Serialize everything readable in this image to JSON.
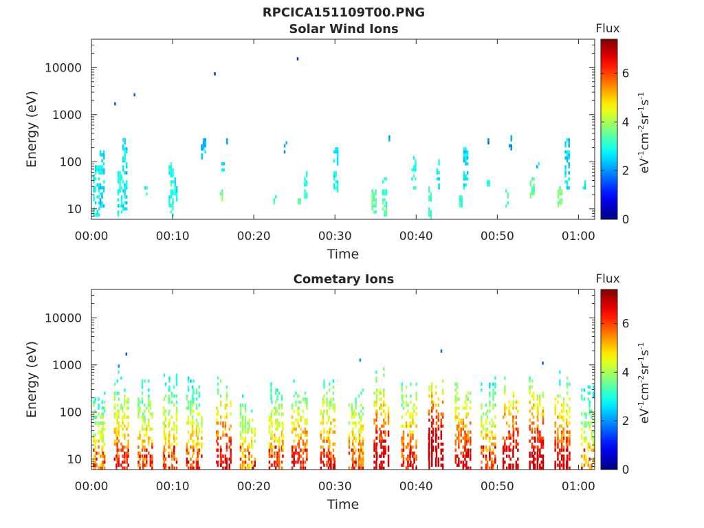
{
  "figure_title": "RPCICA151109T00.PNG",
  "chart_data": [
    {
      "type": "heatmap",
      "title": "Solar Wind Ions",
      "xlabel": "Time",
      "ylabel": "Energy (eV)",
      "yscale": "log",
      "xlim_min": [
        0,
        62
      ],
      "ylim_eV": [
        6,
        40000
      ],
      "x_ticks_min": [
        0,
        10,
        20,
        30,
        40,
        50,
        60
      ],
      "x_tick_labels": [
        "00:00",
        "00:10",
        "00:20",
        "00:30",
        "00:40",
        "00:50",
        "01:00"
      ],
      "y_ticks": [
        10,
        100,
        1000,
        10000
      ],
      "y_tick_labels": [
        "10",
        "100",
        "1000",
        "10000"
      ],
      "colorbar": {
        "title": "Flux",
        "unit_base": "eV",
        "unit_superscripts": [
          "-1",
          "-2",
          "-1",
          "-1"
        ],
        "unit_parts": [
          "cm",
          "sr",
          "s"
        ],
        "range": [
          0,
          7.4
        ],
        "ticks": [
          0,
          2,
          4,
          6
        ],
        "tick_labels": [
          "0",
          "2",
          "4",
          "6"
        ],
        "colormap": "jet"
      },
      "grid": false,
      "clusters": [
        [
          0.2,
          8,
          75,
          2.8,
          0.8
        ],
        [
          1,
          12,
          170,
          2.5,
          0.6
        ],
        [
          3.2,
          8,
          60,
          2.9,
          0.7
        ],
        [
          3.8,
          10,
          300,
          2.6,
          0.7
        ],
        [
          6.5,
          20,
          30,
          3.0,
          0.4
        ],
        [
          9.5,
          7,
          90,
          3.0,
          0.6
        ],
        [
          10.2,
          15,
          60,
          2.8,
          0.5
        ],
        [
          13.5,
          130,
          300,
          2.4,
          0.6
        ],
        [
          15.8,
          15,
          25,
          3.8,
          0.5
        ],
        [
          16.0,
          70,
          90,
          2.6,
          0.4
        ],
        [
          16.6,
          250,
          300,
          2.0,
          0.3
        ],
        [
          22.4,
          12,
          18,
          3.2,
          0.4
        ],
        [
          23.7,
          170,
          300,
          2.1,
          0.4
        ],
        [
          25.4,
          12,
          18,
          3.2,
          0.4
        ],
        [
          26.2,
          18,
          60,
          2.9,
          0.5
        ],
        [
          29.8,
          25,
          180,
          2.7,
          0.6
        ],
        [
          34.5,
          8,
          25,
          3.5,
          0.6
        ],
        [
          35.8,
          8,
          45,
          3.3,
          0.6
        ],
        [
          36.6,
          300,
          350,
          2.0,
          0.3
        ],
        [
          39.4,
          30,
          120,
          3.0,
          0.6
        ],
        [
          41.5,
          6,
          30,
          3.2,
          0.5
        ],
        [
          42.2,
          250,
          300,
          2.0,
          0.3
        ],
        [
          42.5,
          30,
          100,
          2.8,
          0.5
        ],
        [
          45.3,
          12,
          18,
          3.2,
          0.4
        ],
        [
          45.8,
          30,
          180,
          2.6,
          0.6
        ],
        [
          48.7,
          30,
          40,
          2.9,
          0.4
        ],
        [
          48.8,
          250,
          300,
          2.0,
          0.3
        ],
        [
          51.4,
          200,
          320,
          2.0,
          0.5
        ],
        [
          51.0,
          10,
          25,
          3.2,
          0.5
        ],
        [
          54.0,
          15,
          50,
          3.5,
          0.7
        ],
        [
          54.8,
          80,
          110,
          2.5,
          0.4
        ],
        [
          57.4,
          12,
          40,
          3.6,
          0.6
        ],
        [
          58.3,
          30,
          300,
          2.6,
          0.7
        ],
        [
          60.5,
          30,
          40,
          2.8,
          0.4
        ]
      ],
      "points": [
        [
          2.8,
          1700,
          1.6
        ],
        [
          5.2,
          2500,
          1.6
        ],
        [
          15.1,
          7000,
          1.4
        ],
        [
          25.3,
          14500,
          1.3
        ]
      ]
    },
    {
      "type": "heatmap",
      "title": "Cometary Ions",
      "xlabel": "Time",
      "ylabel": "Energy (eV)",
      "yscale": "log",
      "xlim_min": [
        0,
        62
      ],
      "ylim_eV": [
        6,
        40000
      ],
      "x_ticks_min": [
        0,
        10,
        20,
        30,
        40,
        50,
        60
      ],
      "x_tick_labels": [
        "00:00",
        "00:10",
        "00:20",
        "00:30",
        "00:40",
        "00:50",
        "01:00"
      ],
      "y_ticks": [
        10,
        100,
        1000,
        10000
      ],
      "y_tick_labels": [
        "10",
        "100",
        "1000",
        "10000"
      ],
      "colorbar": {
        "title": "Flux",
        "unit_base": "eV",
        "unit_superscripts": [
          "-1",
          "-2",
          "-1",
          "-1"
        ],
        "unit_parts": [
          "cm",
          "sr",
          "s"
        ],
        "range": [
          0,
          7.4
        ],
        "ticks": [
          0,
          2,
          4,
          6
        ],
        "tick_labels": [
          "0",
          "2",
          "4",
          "6"
        ],
        "colormap": "jet"
      },
      "grid": false,
      "bursts": [
        [
          0.5,
          600,
          1.0
        ],
        [
          3.3,
          1100,
          1.2
        ],
        [
          6.3,
          700,
          1.1
        ],
        [
          9.3,
          800,
          1.1
        ],
        [
          12.3,
          700,
          1.1
        ],
        [
          15.9,
          600,
          1.3
        ],
        [
          18.9,
          400,
          1.0
        ],
        [
          22.4,
          650,
          1.1
        ],
        [
          25.3,
          700,
          1.2
        ],
        [
          28.8,
          650,
          1.2
        ],
        [
          32.3,
          450,
          1.1
        ],
        [
          35.3,
          900,
          1.4
        ],
        [
          38.8,
          650,
          1.2
        ],
        [
          42.0,
          900,
          1.6
        ],
        [
          45.4,
          700,
          1.3
        ],
        [
          48.6,
          700,
          1.1
        ],
        [
          51.3,
          800,
          1.4
        ],
        [
          54.5,
          600,
          1.4
        ],
        [
          57.7,
          750,
          1.3
        ],
        [
          61.0,
          700,
          1.0
        ]
      ],
      "points": [
        [
          4.2,
          1700,
          1.6
        ],
        [
          43.0,
          1900,
          1.7
        ],
        [
          55.5,
          1100,
          1.6
        ],
        [
          33.0,
          1300,
          2.0
        ]
      ]
    }
  ]
}
